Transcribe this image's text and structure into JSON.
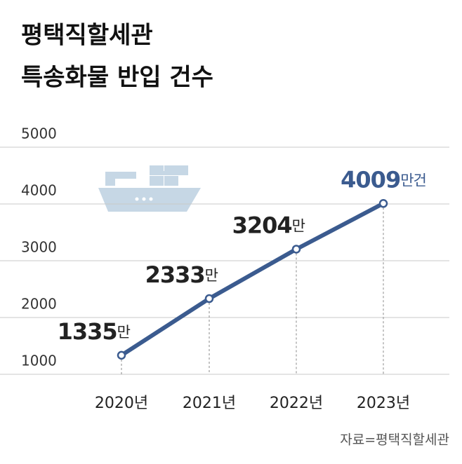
{
  "chart_data": {
    "type": "line",
    "title": "평택직할세관",
    "subtitle": "특송화물 반입 건수",
    "categories": [
      "2020년",
      "2021년",
      "2022년",
      "2023년"
    ],
    "series": [
      {
        "name": "특송화물 반입 건수",
        "color": "#3b5b8f",
        "values": [
          1335,
          2333,
          3204,
          4009
        ],
        "value_labels": [
          "1335만",
          "2333만",
          "3204만",
          "4009만건"
        ]
      }
    ],
    "ylim": [
      1000,
      5000
    ],
    "yticks": [
      1000,
      2000,
      3000,
      4000,
      5000
    ],
    "grid": true,
    "source": "자료=평택직할세관"
  }
}
